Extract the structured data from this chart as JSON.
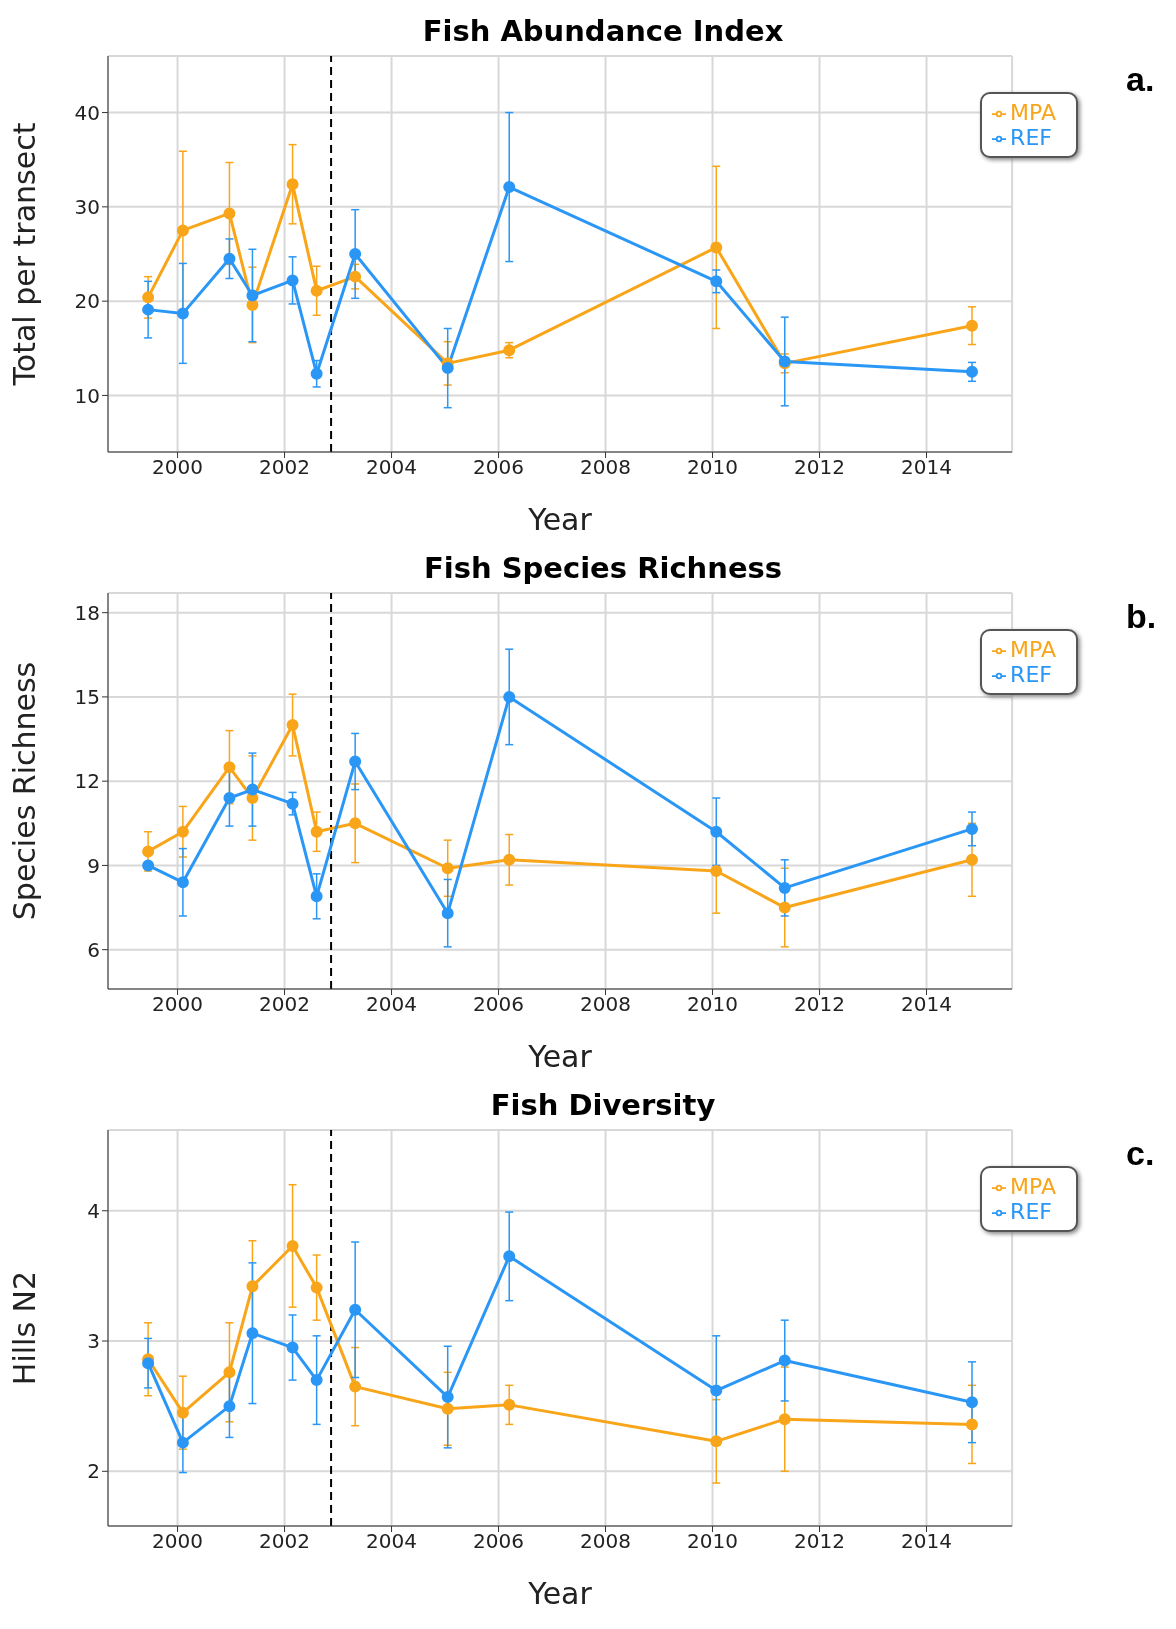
{
  "chart_data": [
    {
      "type": "line",
      "title": "Fish Abundance Index",
      "xlabel": "Year",
      "ylabel": "Total per transect",
      "annotations": [
        "a."
      ],
      "x": [
        1999.45,
        2000.1,
        2000.97,
        2001.4,
        2002.15,
        2002.6,
        2003.32,
        2005.05,
        2006.2,
        2010.07,
        2011.35,
        2014.85
      ],
      "series": [
        {
          "name": "MPA",
          "color": "#f9a51a",
          "values": [
            20.4,
            27.5,
            29.3,
            19.6,
            32.4,
            21.1,
            22.6,
            13.4,
            14.8,
            25.7,
            13.4,
            17.4
          ],
          "errors": [
            2.2,
            8.4,
            5.4,
            4,
            4.2,
            2.6,
            1.3,
            2.3,
            0.8,
            8.6,
            1,
            2
          ]
        },
        {
          "name": "REF",
          "color": "#2a96f5",
          "values": [
            19.1,
            18.7,
            24.5,
            20.6,
            22.2,
            12.3,
            25,
            12.9,
            32.1,
            22.1,
            13.6,
            12.5
          ],
          "errors": [
            3,
            5.3,
            2.1,
            4.9,
            2.5,
            1.4,
            4.7,
            4.2,
            7.9,
            1.2,
            4.7,
            1
          ]
        }
      ],
      "xlim": [
        1998.7,
        2015.6
      ],
      "xticks": [
        2000,
        2002,
        2004,
        2006,
        2008,
        2010,
        2012,
        2014
      ],
      "ylim": [
        4,
        46
      ],
      "yticks": [
        10,
        20,
        30,
        40
      ],
      "ref_lines": [
        {
          "axis": "x",
          "value": 2002.87,
          "color": "#000000",
          "line_style": "dashed"
        }
      ],
      "grid": true,
      "legend": "top right",
      "marker": "circle",
      "line_style": "solid"
    },
    {
      "type": "line",
      "title": "Fish Species Richness",
      "xlabel": "Year",
      "ylabel": "Species Richness",
      "annotations": [
        "b."
      ],
      "x": [
        1999.45,
        2000.1,
        2000.97,
        2001.4,
        2002.15,
        2002.6,
        2003.32,
        2005.05,
        2006.2,
        2010.07,
        2011.35,
        2014.85
      ],
      "series": [
        {
          "name": "MPA",
          "color": "#f9a51a",
          "values": [
            9.5,
            10.2,
            12.5,
            11.4,
            14,
            10.2,
            10.5,
            8.9,
            9.2,
            8.8,
            7.5,
            9.2
          ],
          "errors": [
            0.7,
            0.9,
            1.3,
            1.5,
            1.1,
            0.7,
            1.4,
            1,
            0.9,
            1.5,
            1.4,
            1.3
          ]
        },
        {
          "name": "REF",
          "color": "#2a96f5",
          "values": [
            9,
            8.4,
            11.4,
            11.7,
            11.2,
            7.9,
            12.7,
            7.3,
            15,
            10.2,
            8.2,
            10.3
          ],
          "errors": [
            0.1,
            1.2,
            1,
            1.3,
            0.4,
            0.8,
            1,
            1.2,
            1.7,
            1.2,
            1,
            0.6
          ]
        }
      ],
      "xlim": [
        1998.7,
        2015.6
      ],
      "xticks": [
        2000,
        2002,
        2004,
        2006,
        2008,
        2010,
        2012,
        2014
      ],
      "ylim": [
        4.6,
        18.7
      ],
      "yticks": [
        6,
        9,
        12,
        15,
        18
      ],
      "ref_lines": [
        {
          "axis": "x",
          "value": 2002.87,
          "color": "#000000",
          "line_style": "dashed"
        }
      ],
      "grid": true,
      "legend": "top right",
      "marker": "circle",
      "line_style": "solid"
    },
    {
      "type": "line",
      "title": "Fish Diversity",
      "xlabel": "Year",
      "ylabel": "Hills N2",
      "annotations": [
        "c."
      ],
      "x": [
        1999.45,
        2000.1,
        2000.97,
        2001.4,
        2002.15,
        2002.6,
        2003.32,
        2005.05,
        2006.2,
        2010.07,
        2011.35,
        2014.85
      ],
      "series": [
        {
          "name": "MPA",
          "color": "#f9a51a",
          "values": [
            2.86,
            2.45,
            2.76,
            3.42,
            3.73,
            3.41,
            2.65,
            2.48,
            2.51,
            2.23,
            2.4,
            2.36
          ],
          "errors": [
            0.28,
            0.28,
            0.38,
            0.35,
            0.47,
            0.25,
            0.3,
            0.28,
            0.15,
            0.32,
            0.4,
            0.3
          ]
        },
        {
          "name": "REF",
          "color": "#2a96f5",
          "values": [
            2.83,
            2.22,
            2.5,
            3.06,
            2.95,
            2.7,
            3.24,
            2.57,
            3.65,
            2.62,
            2.85,
            2.53
          ],
          "errors": [
            0.19,
            0.23,
            0.24,
            0.54,
            0.25,
            0.34,
            0.52,
            0.39,
            0.34,
            0.42,
            0.31,
            0.31
          ]
        }
      ],
      "xlim": [
        1998.7,
        2015.6
      ],
      "xticks": [
        2000,
        2002,
        2004,
        2006,
        2008,
        2010,
        2012,
        2014
      ],
      "ylim": [
        1.58,
        4.62
      ],
      "yticks": [
        2,
        3,
        4
      ],
      "ref_lines": [
        {
          "axis": "x",
          "value": 2002.87,
          "color": "#000000",
          "line_style": "dashed"
        }
      ],
      "grid": true,
      "legend": "top right",
      "marker": "circle",
      "line_style": "solid"
    }
  ]
}
